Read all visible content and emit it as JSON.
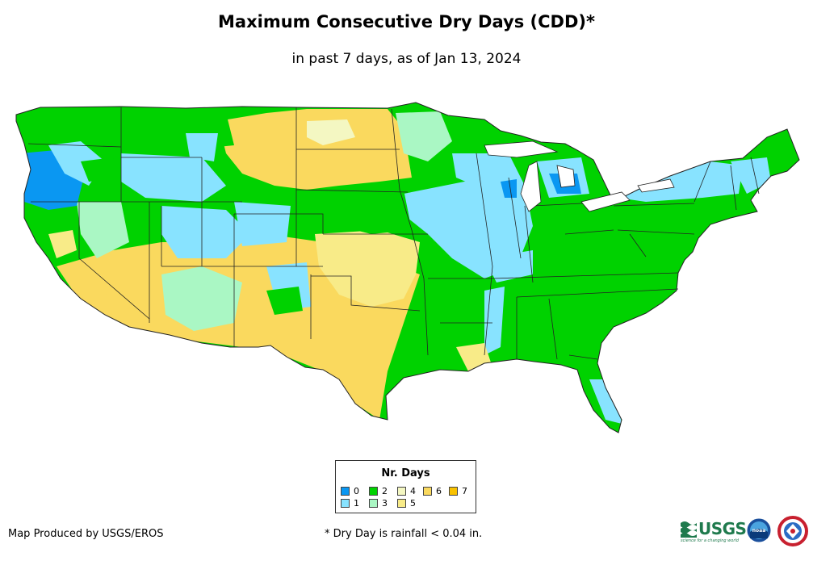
{
  "title": "Maximum Consecutive Dry Days (CDD)*",
  "subtitle": "in past 7 days, as of Jan 13, 2024",
  "legend": {
    "title": "Nr. Days",
    "items": [
      {
        "label": "0",
        "color": "#0a97f2"
      },
      {
        "label": "1",
        "color": "#88e3ff"
      },
      {
        "label": "2",
        "color": "#00d200"
      },
      {
        "label": "3",
        "color": "#aaf7c4"
      },
      {
        "label": "4",
        "color": "#f4f7c2"
      },
      {
        "label": "5",
        "color": "#f8eb88"
      },
      {
        "label": "6",
        "color": "#fad95e"
      },
      {
        "label": "7",
        "color": "#f9c200"
      }
    ]
  },
  "credit": "Map Produced by USGS/EROS",
  "footnote": "* Dry Day is rainfall < 0.04 in.",
  "logos": {
    "usgs_text": "USGS",
    "usgs_tagline": "science for a changing world",
    "noaa_text": "noaa"
  }
}
